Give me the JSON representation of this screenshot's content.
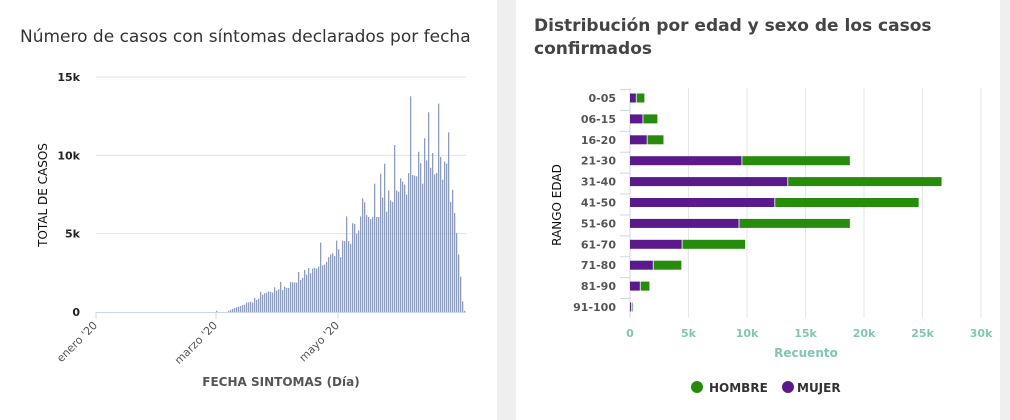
{
  "chart_data": [
    {
      "type": "bar",
      "title": "Número de casos con síntomas declarados por fecha",
      "xlabel": "FECHA SINTOMAS (Día)",
      "ylabel": "TOTAL DE CASOS",
      "ylim": [
        0,
        15000
      ],
      "yticks": [
        "0",
        "5k",
        "10k",
        "15k"
      ],
      "ytick_values": [
        0,
        5000,
        10000,
        15000
      ],
      "xticks": [
        "enero '20",
        "marzo '20",
        "mayo '20"
      ],
      "xtick_dates": [
        "2020-01-01",
        "2020-03-01",
        "2020-05-01"
      ],
      "xlim": [
        "2020-01-01",
        "2020-07-04"
      ],
      "grid": true,
      "bar_color": "#8e9dbe",
      "x": [
        "2020-03-01",
        "2020-03-07",
        "2020-03-08",
        "2020-03-09",
        "2020-03-10",
        "2020-03-11",
        "2020-03-12",
        "2020-03-13",
        "2020-03-14",
        "2020-03-15",
        "2020-03-16",
        "2020-03-17",
        "2020-03-18",
        "2020-03-19",
        "2020-03-20",
        "2020-03-21",
        "2020-03-22",
        "2020-03-23",
        "2020-03-24",
        "2020-03-25",
        "2020-03-26",
        "2020-03-27",
        "2020-03-28",
        "2020-03-29",
        "2020-03-30",
        "2020-03-31",
        "2020-04-01",
        "2020-04-02",
        "2020-04-03",
        "2020-04-04",
        "2020-04-05",
        "2020-04-06",
        "2020-04-07",
        "2020-04-08",
        "2020-04-09",
        "2020-04-10",
        "2020-04-11",
        "2020-04-12",
        "2020-04-13",
        "2020-04-14",
        "2020-04-15",
        "2020-04-16",
        "2020-04-17",
        "2020-04-18",
        "2020-04-19",
        "2020-04-20",
        "2020-04-21",
        "2020-04-22",
        "2020-04-23",
        "2020-04-24",
        "2020-04-25",
        "2020-04-26",
        "2020-04-27",
        "2020-04-28",
        "2020-04-29",
        "2020-04-30",
        "2020-05-01",
        "2020-05-02",
        "2020-05-03",
        "2020-05-04",
        "2020-05-05",
        "2020-05-06",
        "2020-05-07",
        "2020-05-08",
        "2020-05-09",
        "2020-05-10",
        "2020-05-11",
        "2020-05-12",
        "2020-05-13",
        "2020-05-14",
        "2020-05-15",
        "2020-05-16",
        "2020-05-17",
        "2020-05-18",
        "2020-05-19",
        "2020-05-20",
        "2020-05-21",
        "2020-05-22",
        "2020-05-23",
        "2020-05-24",
        "2020-05-25",
        "2020-05-26",
        "2020-05-27",
        "2020-05-28",
        "2020-05-29",
        "2020-05-30",
        "2020-05-31",
        "2020-06-01",
        "2020-06-02",
        "2020-06-03",
        "2020-06-04",
        "2020-06-05",
        "2020-06-06",
        "2020-06-07",
        "2020-06-08",
        "2020-06-09",
        "2020-06-10",
        "2020-06-11",
        "2020-06-12",
        "2020-06-13",
        "2020-06-14",
        "2020-06-15",
        "2020-06-16",
        "2020-06-17",
        "2020-06-18",
        "2020-06-19",
        "2020-06-20",
        "2020-06-21",
        "2020-06-22",
        "2020-06-23",
        "2020-06-24",
        "2020-06-25",
        "2020-06-26",
        "2020-06-27",
        "2020-06-28",
        "2020-06-29",
        "2020-06-30",
        "2020-07-01",
        "2020-07-02",
        "2020-07-03"
      ],
      "values": [
        80,
        80,
        130,
        200,
        250,
        300,
        340,
        380,
        450,
        470,
        600,
        620,
        660,
        600,
        900,
        770,
        850,
        1280,
        1100,
        1200,
        1240,
        1320,
        1280,
        1240,
        1580,
        1360,
        1450,
        1920,
        1400,
        1620,
        1540,
        1540,
        1920,
        1880,
        1880,
        1880,
        2560,
        2050,
        2180,
        2690,
        2390,
        2810,
        2470,
        2770,
        2810,
        2770,
        2900,
        4430,
        2980,
        3030,
        3200,
        3500,
        3670,
        3750,
        3580,
        4560,
        4000,
        3500,
        4560,
        4520,
        6100,
        4520,
        4350,
        5670,
        5630,
        5000,
        5200,
        6100,
        7250,
        7000,
        6180,
        6060,
        5930,
        6060,
        8190,
        6060,
        6060,
        8830,
        7300,
        9470,
        6400,
        7760,
        7120,
        7030,
        10660,
        7760,
        7680,
        8530,
        8320,
        8140,
        7500,
        8870,
        13770,
        8740,
        8700,
        8660,
        10230,
        9500,
        8190,
        11090,
        9680,
        12750,
        9200,
        10150,
        8780,
        8870,
        13300,
        9900,
        8440,
        9600,
        9470,
        11470,
        7030,
        7800,
        6310,
        5030,
        3670,
        2260,
        680,
        80
      ]
    },
    {
      "type": "bar",
      "orientation": "horizontal",
      "stacked": true,
      "title": "Distribución por edad y sexo de los casos confirmados",
      "xlabel": "Recuento",
      "ylabel": "RANGO EDAD",
      "xlim": [
        0,
        30000
      ],
      "xticks": [
        "0",
        "5k",
        "10k",
        "15k",
        "20k",
        "25k",
        "30k"
      ],
      "xtick_values": [
        0,
        5000,
        10000,
        15000,
        20000,
        25000,
        30000
      ],
      "grid": true,
      "legend_position": "bottom",
      "categories": [
        "0-05",
        "06-15",
        "16-20",
        "21-30",
        "31-40",
        "41-50",
        "51-60",
        "61-70",
        "71-80",
        "81-90",
        "91-100"
      ],
      "series": [
        {
          "name": "MUJER",
          "color": "#5a1a8c",
          "values": [
            570,
            1140,
            1500,
            9600,
            13520,
            12410,
            9350,
            4490,
            2020,
            910,
            150
          ]
        },
        {
          "name": "HOMBRE",
          "color": "#278c0b",
          "values": [
            730,
            1270,
            1430,
            9260,
            13180,
            12330,
            9510,
            5420,
            2440,
            820,
            100
          ]
        }
      ],
      "legend": [
        "HOMBRE",
        "MUJER"
      ]
    }
  ]
}
